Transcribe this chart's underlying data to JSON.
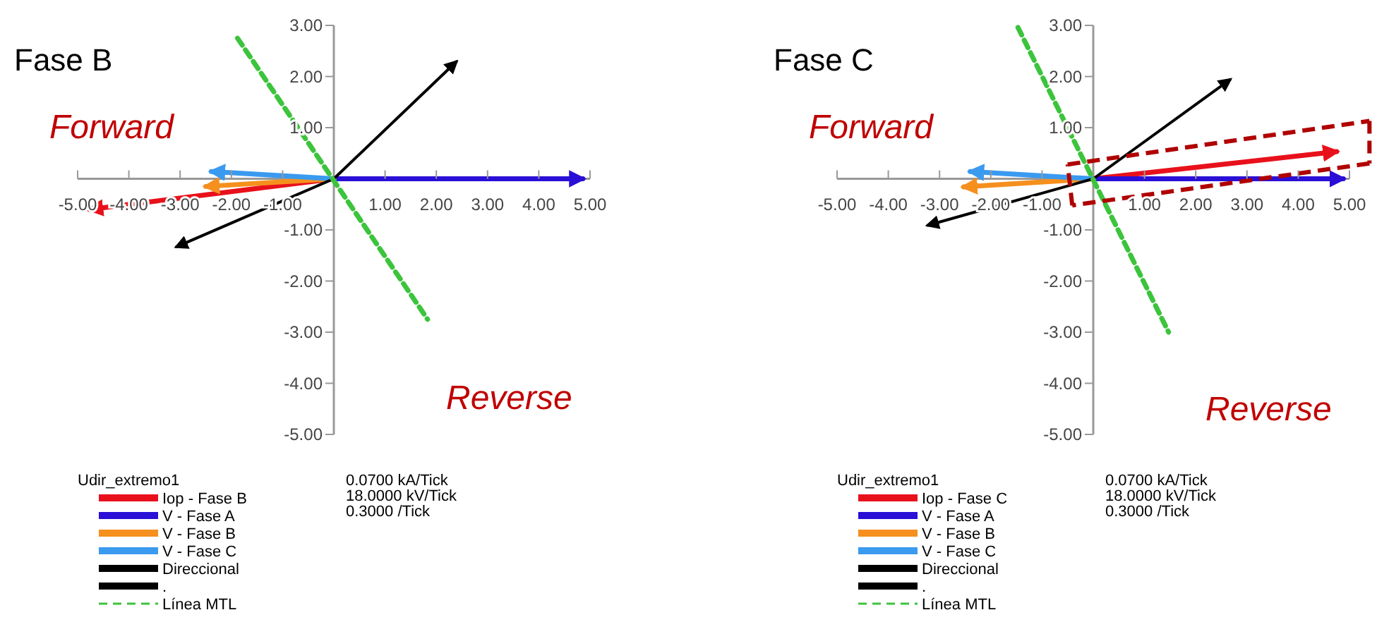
{
  "chart_data": [
    {
      "type": "line",
      "title": "Fase B",
      "legend_title": "Udir_extremo1",
      "legend": "bottom",
      "grid": false,
      "marker": "none",
      "xlim": [
        -5,
        5
      ],
      "ylim": [
        -5,
        3
      ],
      "xticks": [
        {
          "value": -5,
          "label": "-5.00"
        },
        {
          "value": -4,
          "label": "-4.00"
        },
        {
          "value": -3,
          "label": "-3.00"
        },
        {
          "value": -2,
          "label": "-2.00"
        },
        {
          "value": -1,
          "label": "-1.00"
        },
        {
          "value": 1,
          "label": "1.00"
        },
        {
          "value": 2,
          "label": "2.00"
        },
        {
          "value": 3,
          "label": "3.00"
        },
        {
          "value": 4,
          "label": "4.00"
        },
        {
          "value": 5,
          "label": "5.00"
        }
      ],
      "yticks": [
        {
          "value": 3,
          "label": "3.00"
        },
        {
          "value": 2,
          "label": "2.00"
        },
        {
          "value": 1,
          "label": "1.00"
        },
        {
          "value": -1,
          "label": "-1.00"
        },
        {
          "value": -2,
          "label": "-2.00"
        },
        {
          "value": -3,
          "label": "-3.00"
        },
        {
          "value": -4,
          "label": "-4.00"
        },
        {
          "value": -5,
          "label": "-5.00"
        }
      ],
      "annotations": [
        "Forward",
        "Reverse",
        "0.0700 kA/Tick",
        "18.0000 kV/Tick",
        "0.3000  /Tick"
      ],
      "series": [
        {
          "name": "Iop - Fase B",
          "color": "#e8111b",
          "x": [
            0,
            -4.77
          ],
          "values": [
            0,
            -0.6
          ]
        },
        {
          "name": "V - Fase A",
          "color": "#2a0fd6",
          "x": [
            0,
            4.86
          ],
          "values": [
            0,
            0
          ]
        },
        {
          "name": "V - Fase B",
          "color": "#f5901e",
          "x": [
            0,
            -2.5
          ],
          "values": [
            0,
            -0.15
          ]
        },
        {
          "name": "V - Fase C",
          "color": "#3a9af0",
          "x": [
            0,
            -2.39
          ],
          "values": [
            0,
            0.14
          ]
        },
        {
          "name": "Direccional",
          "color": "#000000",
          "x": [
            0,
            2.39
          ],
          "values": [
            0,
            2.29
          ]
        },
        {
          "name": ".",
          "color": "#000000",
          "x": [
            0,
            -3.07
          ],
          "values": [
            0,
            -1.33
          ]
        },
        {
          "name": "Línea MTL",
          "color": "#3cc43c",
          "line_style": "dashed",
          "x": [
            -1.88,
            1.83
          ],
          "values": [
            2.75,
            -2.75
          ]
        }
      ]
    },
    {
      "type": "line",
      "title": "Fase C",
      "legend_title": "Udir_extremo1",
      "legend": "bottom",
      "grid": false,
      "marker": "none",
      "xlim": [
        -5,
        5
      ],
      "ylim": [
        -5,
        3
      ],
      "xticks": [
        {
          "value": -5,
          "label": "-5.00"
        },
        {
          "value": -4,
          "label": "-4.00"
        },
        {
          "value": -3,
          "label": "-3.00"
        },
        {
          "value": -2,
          "label": "-2.00"
        },
        {
          "value": -1,
          "label": "-1.00"
        },
        {
          "value": 1,
          "label": "1.00"
        },
        {
          "value": 2,
          "label": "2.00"
        },
        {
          "value": 3,
          "label": "3.00"
        },
        {
          "value": 4,
          "label": "4.00"
        },
        {
          "value": 5,
          "label": "5.00"
        }
      ],
      "yticks": [
        {
          "value": 3,
          "label": "3.00"
        },
        {
          "value": 2,
          "label": "2.00"
        },
        {
          "value": 1,
          "label": "1.00"
        },
        {
          "value": -1,
          "label": "-1.00"
        },
        {
          "value": -2,
          "label": "-2.00"
        },
        {
          "value": -3,
          "label": "-3.00"
        },
        {
          "value": -4,
          "label": "-4.00"
        },
        {
          "value": -5,
          "label": "-5.00"
        }
      ],
      "annotations": [
        "Forward",
        "Reverse",
        "0.0700 kA/Tick",
        "18.0000 kV/Tick",
        "0.3000  /Tick"
      ],
      "series": [
        {
          "name": "Iop - Fase C",
          "color": "#e8111b",
          "x": [
            0,
            4.75
          ],
          "values": [
            0,
            0.53
          ]
        },
        {
          "name": "V - Fase A",
          "color": "#2a0fd6",
          "x": [
            0,
            4.88
          ],
          "values": [
            0,
            0
          ]
        },
        {
          "name": "V - Fase B",
          "color": "#f5901e",
          "x": [
            0,
            -2.53
          ],
          "values": [
            0,
            -0.16
          ]
        },
        {
          "name": "V - Fase C",
          "color": "#3a9af0",
          "x": [
            0,
            -2.4
          ],
          "values": [
            0,
            0.14
          ]
        },
        {
          "name": "Direccional",
          "color": "#000000",
          "x": [
            0,
            2.67
          ],
          "values": [
            0,
            1.94
          ]
        },
        {
          "name": ".",
          "color": "#000000",
          "x": [
            0,
            -3.23
          ],
          "values": [
            0,
            -0.91
          ]
        },
        {
          "name": "Línea MTL",
          "color": "#3cc43c",
          "line_style": "dashed",
          "x": [
            -1.47,
            1.47
          ],
          "values": [
            2.96,
            -3.0
          ]
        }
      ]
    }
  ]
}
